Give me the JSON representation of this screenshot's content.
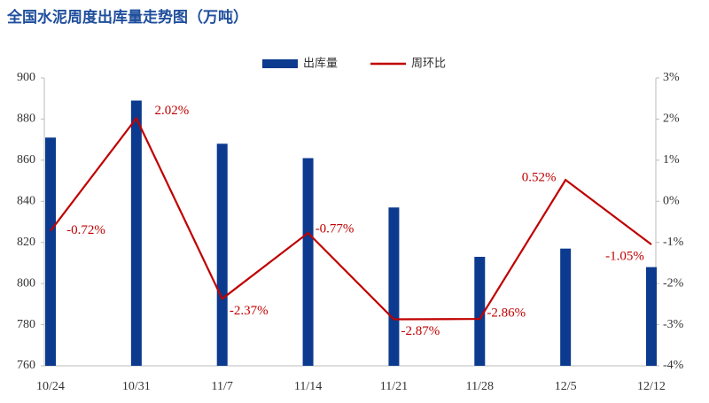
{
  "chart_data": {
    "type": "bar_line",
    "title": "全国水泥周度出库量走势图（万吨）",
    "categories": [
      "10/24",
      "10/31",
      "11/7",
      "11/14",
      "11/21",
      "11/28",
      "12/5",
      "12/12"
    ],
    "series": [
      {
        "name": "出库量",
        "color": "#0b3a8e",
        "type": "bar",
        "values": [
          871,
          889,
          868,
          861,
          837,
          813,
          817,
          808
        ]
      },
      {
        "name": "周环比",
        "color": "#c00000",
        "type": "line",
        "axis": "y2",
        "values": [
          -0.72,
          2.02,
          -2.37,
          -0.77,
          -2.87,
          -2.86,
          0.52,
          -1.05
        ],
        "value_labels": [
          "-0.72%",
          "2.02%",
          "-2.37%",
          "-0.77%",
          "-2.87%",
          "-2.86%",
          "0.52%",
          "-1.05%"
        ]
      }
    ],
    "ylim": [
      760,
      900
    ],
    "yticks": [
      760,
      780,
      800,
      820,
      840,
      860,
      880,
      900
    ],
    "y2lim": [
      -4,
      3
    ],
    "y2ticks": [
      {
        "value": -4,
        "label": "-4%"
      },
      {
        "value": -3,
        "label": "-3%"
      },
      {
        "value": -2,
        "label": "-2%"
      },
      {
        "value": -1,
        "label": "-1%"
      },
      {
        "value": 0,
        "label": "0%"
      },
      {
        "value": 1,
        "label": "1%"
      },
      {
        "value": 2,
        "label": "2%"
      },
      {
        "value": 3,
        "label": "3%"
      }
    ],
    "legend": "top",
    "grid": false
  }
}
